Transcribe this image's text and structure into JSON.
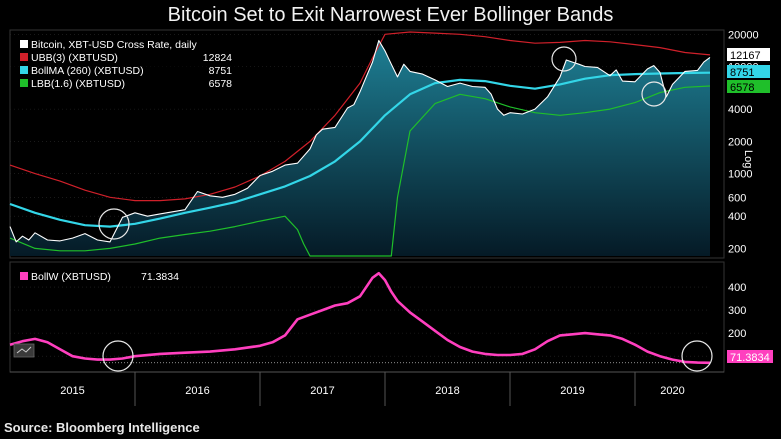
{
  "title": "Bitcoin Set to Exit Narrowest Ever Bollinger Bands",
  "source": "Source: Bloomberg Intelligence",
  "colors": {
    "price": "#ffffff",
    "ubb": "#d0202a",
    "bollma": "#33d6e8",
    "lbb": "#1fbf2a",
    "bollw": "#ff3fbf",
    "fill_top": "#1e7f94",
    "fill_bottom": "#051a26"
  },
  "chart_data": [
    {
      "type": "line",
      "legend": [
        {
          "name": "Bitcoin, XBT-USD Cross Rate, daily",
          "value": ""
        },
        {
          "name": "UBB(3) (XBTUSD)",
          "value": "12824"
        },
        {
          "name": "BollMA (260) (XBTUSD)",
          "value": "8751"
        },
        {
          "name": "LBB(1.6) (XBTUSD)",
          "value": "6578"
        }
      ],
      "value_labels": [
        "12167",
        "8751",
        "6578"
      ],
      "yscale": "log",
      "ylim": [
        170,
        21000
      ],
      "ytick_labels": [
        "20000",
        "10000",
        "4000",
        "2000",
        "1000",
        "600",
        "400",
        "200"
      ],
      "ytick_values": [
        20000,
        10000,
        4000,
        2000,
        1000,
        600,
        400,
        200
      ],
      "axis_label": "Log",
      "xlim": [
        2015.0,
        2020.6
      ],
      "series": [
        {
          "name": "Bitcoin, XBT-USD Cross Rate, daily",
          "x": [
            2015.0,
            2015.05,
            2015.1,
            2015.15,
            2015.2,
            2015.3,
            2015.4,
            2015.5,
            2015.6,
            2015.7,
            2015.8,
            2015.9,
            2016.0,
            2016.1,
            2016.2,
            2016.3,
            2016.4,
            2016.5,
            2016.6,
            2016.7,
            2016.8,
            2016.9,
            2017.0,
            2017.1,
            2017.2,
            2017.3,
            2017.4,
            2017.45,
            2017.5,
            2017.6,
            2017.7,
            2017.75,
            2017.8,
            2017.85,
            2017.9,
            2017.95,
            2018.0,
            2018.05,
            2018.1,
            2018.15,
            2018.2,
            2018.3,
            2018.4,
            2018.5,
            2018.6,
            2018.7,
            2018.8,
            2018.85,
            2018.9,
            2018.95,
            2019.0,
            2019.1,
            2019.2,
            2019.3,
            2019.4,
            2019.45,
            2019.5,
            2019.55,
            2019.6,
            2019.7,
            2019.8,
            2019.85,
            2019.9,
            2020.0,
            2020.1,
            2020.15,
            2020.2,
            2020.25,
            2020.3,
            2020.4,
            2020.5,
            2020.55,
            2020.6
          ],
          "values": [
            320,
            230,
            260,
            240,
            280,
            240,
            235,
            250,
            275,
            240,
            230,
            390,
            430,
            400,
            420,
            440,
            460,
            680,
            620,
            600,
            640,
            730,
            960,
            1050,
            1200,
            1250,
            1700,
            2300,
            2600,
            2700,
            4100,
            4400,
            5800,
            8000,
            11000,
            17500,
            14000,
            10500,
            8000,
            10500,
            9000,
            8500,
            7500,
            6500,
            7000,
            6500,
            6400,
            5500,
            4000,
            3500,
            3700,
            3600,
            4000,
            5200,
            8000,
            11500,
            11000,
            10500,
            10000,
            9800,
            8200,
            9300,
            7300,
            7200,
            9500,
            10200,
            8800,
            5200,
            6800,
            9000,
            9200,
            11000,
            12167
          ]
        },
        {
          "name": "UBB(3) (XBTUSD)",
          "x": [
            2015.0,
            2015.2,
            2015.4,
            2015.6,
            2015.8,
            2016.0,
            2016.2,
            2016.4,
            2016.6,
            2016.8,
            2017.0,
            2017.2,
            2017.4,
            2017.6,
            2017.8,
            2017.9,
            2018.0,
            2018.2,
            2018.4,
            2018.6,
            2018.8,
            2019.0,
            2019.2,
            2019.4,
            2019.6,
            2019.8,
            2020.0,
            2020.2,
            2020.4,
            2020.6
          ],
          "values": [
            1200,
            1000,
            850,
            700,
            600,
            560,
            560,
            580,
            640,
            750,
            950,
            1300,
            2000,
            3500,
            7000,
            12000,
            20000,
            21000,
            20500,
            20000,
            19000,
            17500,
            16500,
            16800,
            17500,
            17000,
            16000,
            15000,
            13500,
            12824
          ]
        },
        {
          "name": "BollMA (260) (XBTUSD)",
          "x": [
            2015.0,
            2015.2,
            2015.4,
            2015.6,
            2015.8,
            2016.0,
            2016.2,
            2016.4,
            2016.6,
            2016.8,
            2017.0,
            2017.2,
            2017.4,
            2017.6,
            2017.8,
            2018.0,
            2018.2,
            2018.4,
            2018.6,
            2018.8,
            2019.0,
            2019.2,
            2019.4,
            2019.6,
            2019.8,
            2020.0,
            2020.2,
            2020.4,
            2020.6
          ],
          "values": [
            520,
            430,
            370,
            330,
            320,
            340,
            380,
            430,
            480,
            540,
            640,
            760,
            950,
            1300,
            2000,
            3500,
            5500,
            7000,
            7500,
            7300,
            6600,
            6200,
            6800,
            7700,
            8300,
            8500,
            8600,
            8700,
            8751
          ]
        },
        {
          "name": "LBB(1.6) (XBTUSD)",
          "x": [
            2015.0,
            2015.2,
            2015.4,
            2015.6,
            2015.8,
            2016.0,
            2016.2,
            2016.4,
            2016.6,
            2016.8,
            2017.0,
            2017.2,
            2017.3,
            2017.35,
            2017.4,
            2018.05,
            2018.1,
            2018.2,
            2018.4,
            2018.6,
            2018.8,
            2019.0,
            2019.2,
            2019.4,
            2019.6,
            2019.8,
            2020.0,
            2020.2,
            2020.4,
            2020.6
          ],
          "values": [
            250,
            200,
            190,
            190,
            200,
            220,
            250,
            270,
            290,
            320,
            360,
            400,
            300,
            220,
            170,
            170,
            600,
            2500,
            4500,
            5500,
            5000,
            4200,
            3700,
            3500,
            3700,
            4000,
            4600,
            5700,
            6400,
            6578
          ]
        }
      ]
    },
    {
      "type": "line",
      "legend": [
        {
          "name": "BollW (XBTUSD)",
          "value": "71.3834"
        }
      ],
      "value_label": "71.3834",
      "ylim": [
        40,
        500
      ],
      "ytick_labels": [
        "400",
        "300",
        "200",
        "100"
      ],
      "ytick_values": [
        400,
        300,
        200,
        100
      ],
      "xlim": [
        2015.0,
        2020.6
      ],
      "x_tick_labels": [
        "2015",
        "2016",
        "2017",
        "2018",
        "2019",
        "2020"
      ],
      "x_tick_positions": [
        2015.5,
        2016.5,
        2017.5,
        2018.5,
        2019.5,
        2020.3
      ],
      "series": [
        {
          "name": "BollW (XBTUSD)",
          "x": [
            2015.0,
            2015.1,
            2015.2,
            2015.3,
            2015.4,
            2015.5,
            2015.6,
            2015.7,
            2015.8,
            2015.9,
            2016.0,
            2016.2,
            2016.4,
            2016.6,
            2016.8,
            2017.0,
            2017.1,
            2017.2,
            2017.3,
            2017.4,
            2017.5,
            2017.6,
            2017.7,
            2017.8,
            2017.9,
            2017.95,
            2018.0,
            2018.05,
            2018.1,
            2018.2,
            2018.3,
            2018.4,
            2018.5,
            2018.6,
            2018.7,
            2018.8,
            2018.9,
            2019.0,
            2019.1,
            2019.2,
            2019.3,
            2019.4,
            2019.5,
            2019.6,
            2019.7,
            2019.8,
            2019.9,
            2020.0,
            2020.1,
            2020.2,
            2020.3,
            2020.4,
            2020.5,
            2020.6
          ],
          "values": [
            150,
            165,
            175,
            160,
            130,
            100,
            90,
            85,
            85,
            90,
            100,
            110,
            115,
            120,
            130,
            145,
            160,
            190,
            260,
            280,
            300,
            320,
            330,
            360,
            440,
            460,
            430,
            380,
            340,
            290,
            250,
            210,
            170,
            140,
            120,
            110,
            105,
            105,
            110,
            130,
            165,
            190,
            195,
            200,
            195,
            190,
            175,
            150,
            120,
            100,
            85,
            75,
            72,
            71.38
          ]
        }
      ]
    }
  ]
}
